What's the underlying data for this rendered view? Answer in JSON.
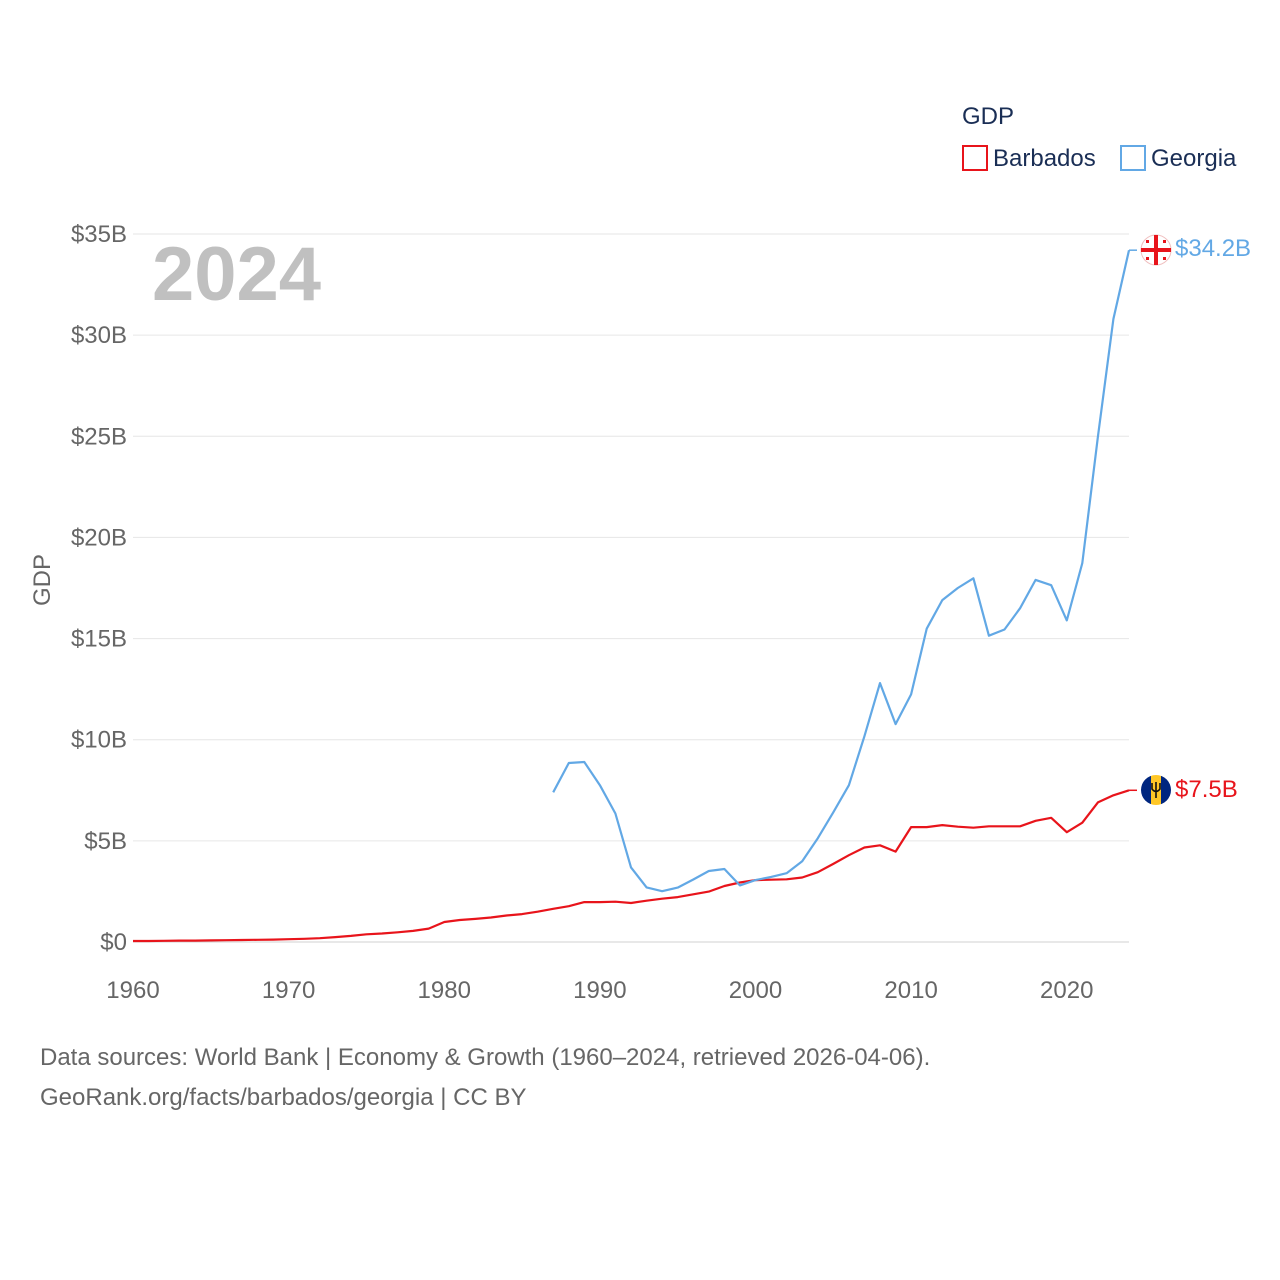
{
  "colors": {
    "barbados": "#e8141b",
    "georgia": "#62a8e5",
    "grid": "#e6e6e6",
    "axis_text": "#666666",
    "legend_text": "#1a2e55",
    "year_watermark": "#c0c0c0"
  },
  "sources": {
    "line1": "Data sources: World Bank | Economy & Growth (1960–2024, retrieved 2026-04-06).",
    "line2": "GeoRank.org/facts/barbados/georgia | CC BY"
  },
  "chart_data": {
    "type": "line",
    "title": "",
    "year_label": "2024",
    "ylabel": "GDP",
    "xlabel": "",
    "xlim": [
      1960,
      2024
    ],
    "ylim": [
      0,
      35
    ],
    "x_ticks": [
      1960,
      1970,
      1980,
      1990,
      2000,
      2010,
      2020
    ],
    "y_ticks": [
      {
        "value": 0,
        "label": "$0"
      },
      {
        "value": 5,
        "label": "$5B"
      },
      {
        "value": 10,
        "label": "$10B"
      },
      {
        "value": 15,
        "label": "$15B"
      },
      {
        "value": 20,
        "label": "$20B"
      },
      {
        "value": 25,
        "label": "$25B"
      },
      {
        "value": 30,
        "label": "$30B"
      },
      {
        "value": 35,
        "label": "$35B"
      }
    ],
    "grid": true,
    "legend": {
      "title": "GDP",
      "position": "top-right",
      "items": [
        "Barbados",
        "Georgia"
      ]
    },
    "series": [
      {
        "name": "Barbados",
        "key": "barbados",
        "end_label": "$7.5B",
        "flag": "barbados-flag-icon",
        "x": [
          1960,
          1961,
          1962,
          1963,
          1964,
          1965,
          1966,
          1967,
          1968,
          1969,
          1970,
          1971,
          1972,
          1973,
          1974,
          1975,
          1976,
          1977,
          1978,
          1979,
          1980,
          1981,
          1982,
          1983,
          1984,
          1985,
          1986,
          1987,
          1988,
          1989,
          1990,
          1991,
          1992,
          1993,
          1994,
          1995,
          1996,
          1997,
          1998,
          1999,
          2000,
          2001,
          2002,
          2003,
          2004,
          2005,
          2006,
          2007,
          2008,
          2009,
          2010,
          2011,
          2012,
          2013,
          2014,
          2015,
          2016,
          2017,
          2018,
          2019,
          2020,
          2021,
          2022,
          2023,
          2024
        ],
        "values": [
          0.05,
          0.05,
          0.06,
          0.07,
          0.07,
          0.08,
          0.09,
          0.1,
          0.11,
          0.12,
          0.14,
          0.16,
          0.19,
          0.24,
          0.3,
          0.38,
          0.42,
          0.48,
          0.55,
          0.66,
          0.99,
          1.09,
          1.14,
          1.21,
          1.31,
          1.38,
          1.5,
          1.64,
          1.77,
          1.97,
          1.97,
          1.99,
          1.93,
          2.04,
          2.14,
          2.22,
          2.36,
          2.49,
          2.77,
          2.94,
          3.06,
          3.08,
          3.1,
          3.19,
          3.45,
          3.86,
          4.29,
          4.67,
          4.78,
          4.47,
          5.68,
          5.68,
          5.78,
          5.7,
          5.65,
          5.72,
          5.72,
          5.72,
          5.99,
          6.14,
          5.43,
          5.9,
          6.9,
          7.25,
          7.5
        ]
      },
      {
        "name": "Georgia",
        "key": "georgia",
        "end_label": "$34.2B",
        "flag": "georgia-flag-icon",
        "x": [
          1987,
          1988,
          1989,
          1990,
          1991,
          1992,
          1993,
          1994,
          1995,
          1996,
          1997,
          1998,
          1999,
          2000,
          2001,
          2002,
          2003,
          2004,
          2005,
          2006,
          2007,
          2008,
          2009,
          2010,
          2011,
          2012,
          2013,
          2014,
          2015,
          2016,
          2017,
          2018,
          2019,
          2020,
          2021,
          2022,
          2023,
          2024
        ],
        "values": [
          7.4,
          8.85,
          8.9,
          7.75,
          6.35,
          3.69,
          2.7,
          2.51,
          2.69,
          3.09,
          3.51,
          3.61,
          2.8,
          3.06,
          3.22,
          3.4,
          3.99,
          5.13,
          6.41,
          7.75,
          10.17,
          12.8,
          10.77,
          12.24,
          15.49,
          16.9,
          17.5,
          17.98,
          15.14,
          15.45,
          16.5,
          17.9,
          17.64,
          15.9,
          18.73,
          24.98,
          30.8,
          34.2
        ]
      }
    ]
  }
}
